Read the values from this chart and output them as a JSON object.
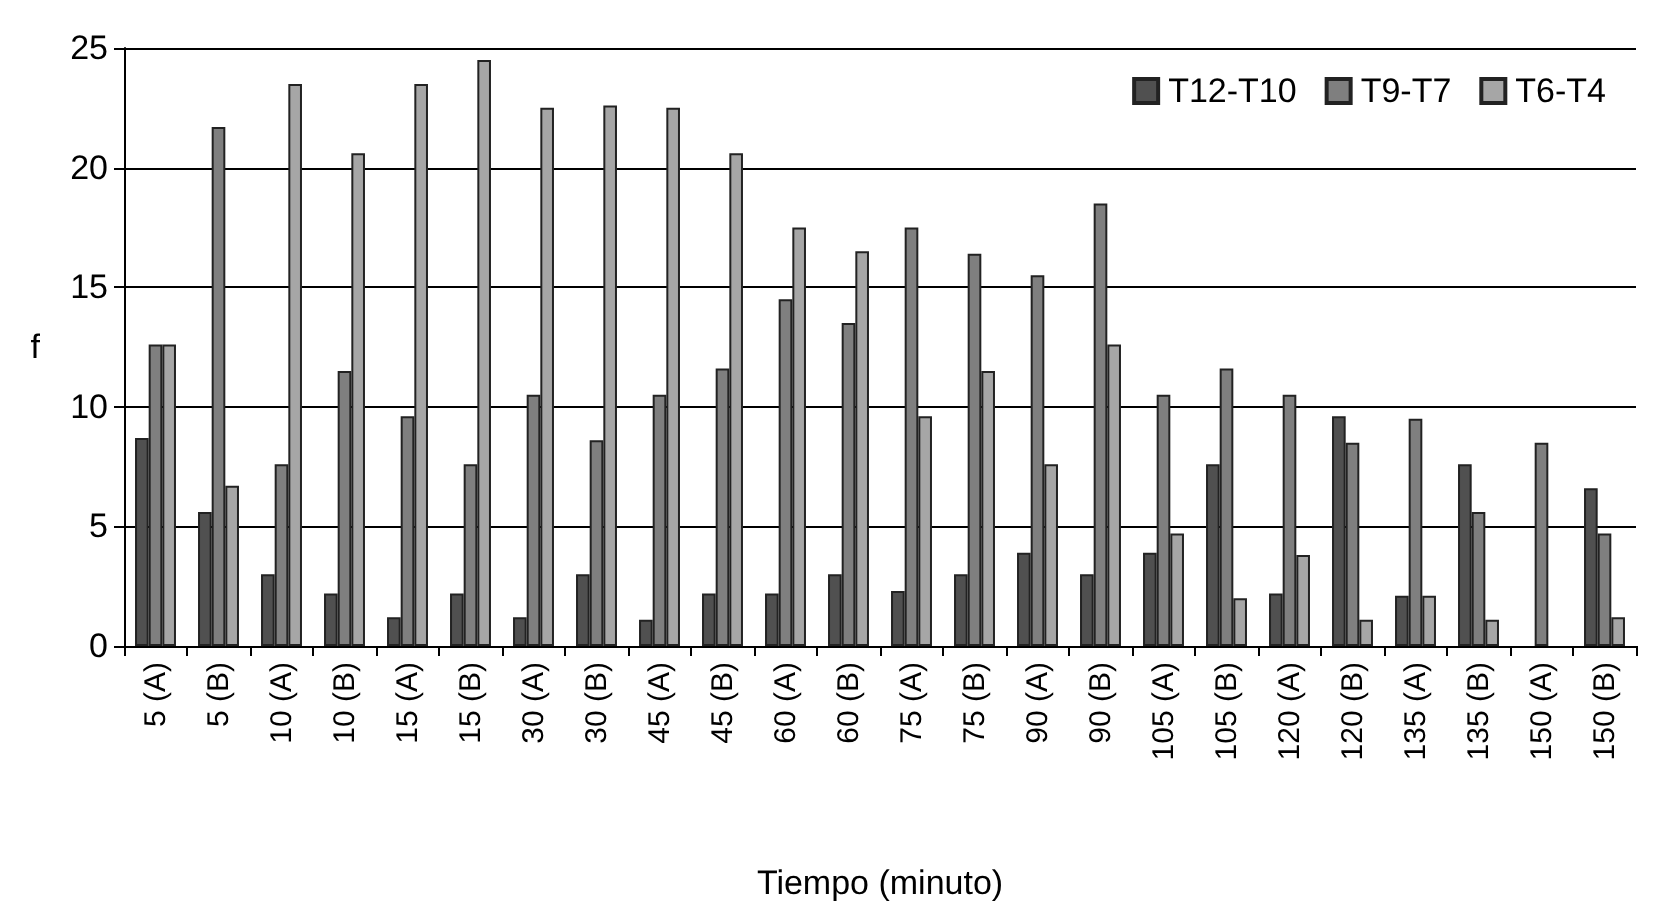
{
  "chart_data": {
    "type": "bar",
    "xlabel": "Tiempo (minuto)",
    "ylabel": "f",
    "categories": [
      "5 (A)",
      "5 (B)",
      "10 (A)",
      "10 (B)",
      "15 (A)",
      "15 (B)",
      "30 (A)",
      "30 (B)",
      "45 (A)",
      "45 (B)",
      "60 (A)",
      "60 (B)",
      "75 (A)",
      "75 (B)",
      "90 (A)",
      "90 (B)",
      "105 (A)",
      "105 (B)",
      "120 (A)",
      "120 (B)",
      "135 (A)",
      "135 (B)",
      "150 (A)",
      "150 (B)"
    ],
    "series": [
      {
        "name": "T12-T10",
        "color": "#505050",
        "values": [
          8.7,
          5.6,
          3.0,
          2.2,
          1.2,
          2.2,
          1.2,
          3.0,
          1.1,
          2.2,
          2.2,
          3.0,
          2.3,
          3.0,
          3.9,
          3.0,
          3.9,
          7.6,
          2.2,
          9.6,
          2.1,
          7.6,
          null,
          6.6
        ]
      },
      {
        "name": "T9-T7",
        "color": "#7f7f7f",
        "values": [
          12.6,
          21.7,
          7.6,
          11.5,
          9.6,
          7.6,
          10.5,
          8.6,
          10.5,
          11.6,
          14.5,
          13.5,
          17.5,
          16.4,
          15.5,
          18.5,
          10.5,
          11.6,
          10.5,
          8.5,
          9.5,
          5.6,
          8.5,
          4.7
        ]
      },
      {
        "name": "T6-T4",
        "color": "#a6a6a6",
        "values": [
          12.6,
          6.7,
          23.5,
          20.6,
          23.5,
          24.5,
          22.5,
          22.6,
          22.5,
          20.6,
          17.5,
          16.5,
          9.6,
          11.5,
          7.6,
          12.6,
          4.7,
          2.0,
          3.8,
          1.1,
          2.1,
          1.1,
          null,
          1.2
        ]
      }
    ],
    "ylim": [
      0,
      25
    ],
    "yticks": [
      0,
      5,
      10,
      15,
      20,
      25
    ],
    "grid": "y",
    "legend": "top right"
  }
}
